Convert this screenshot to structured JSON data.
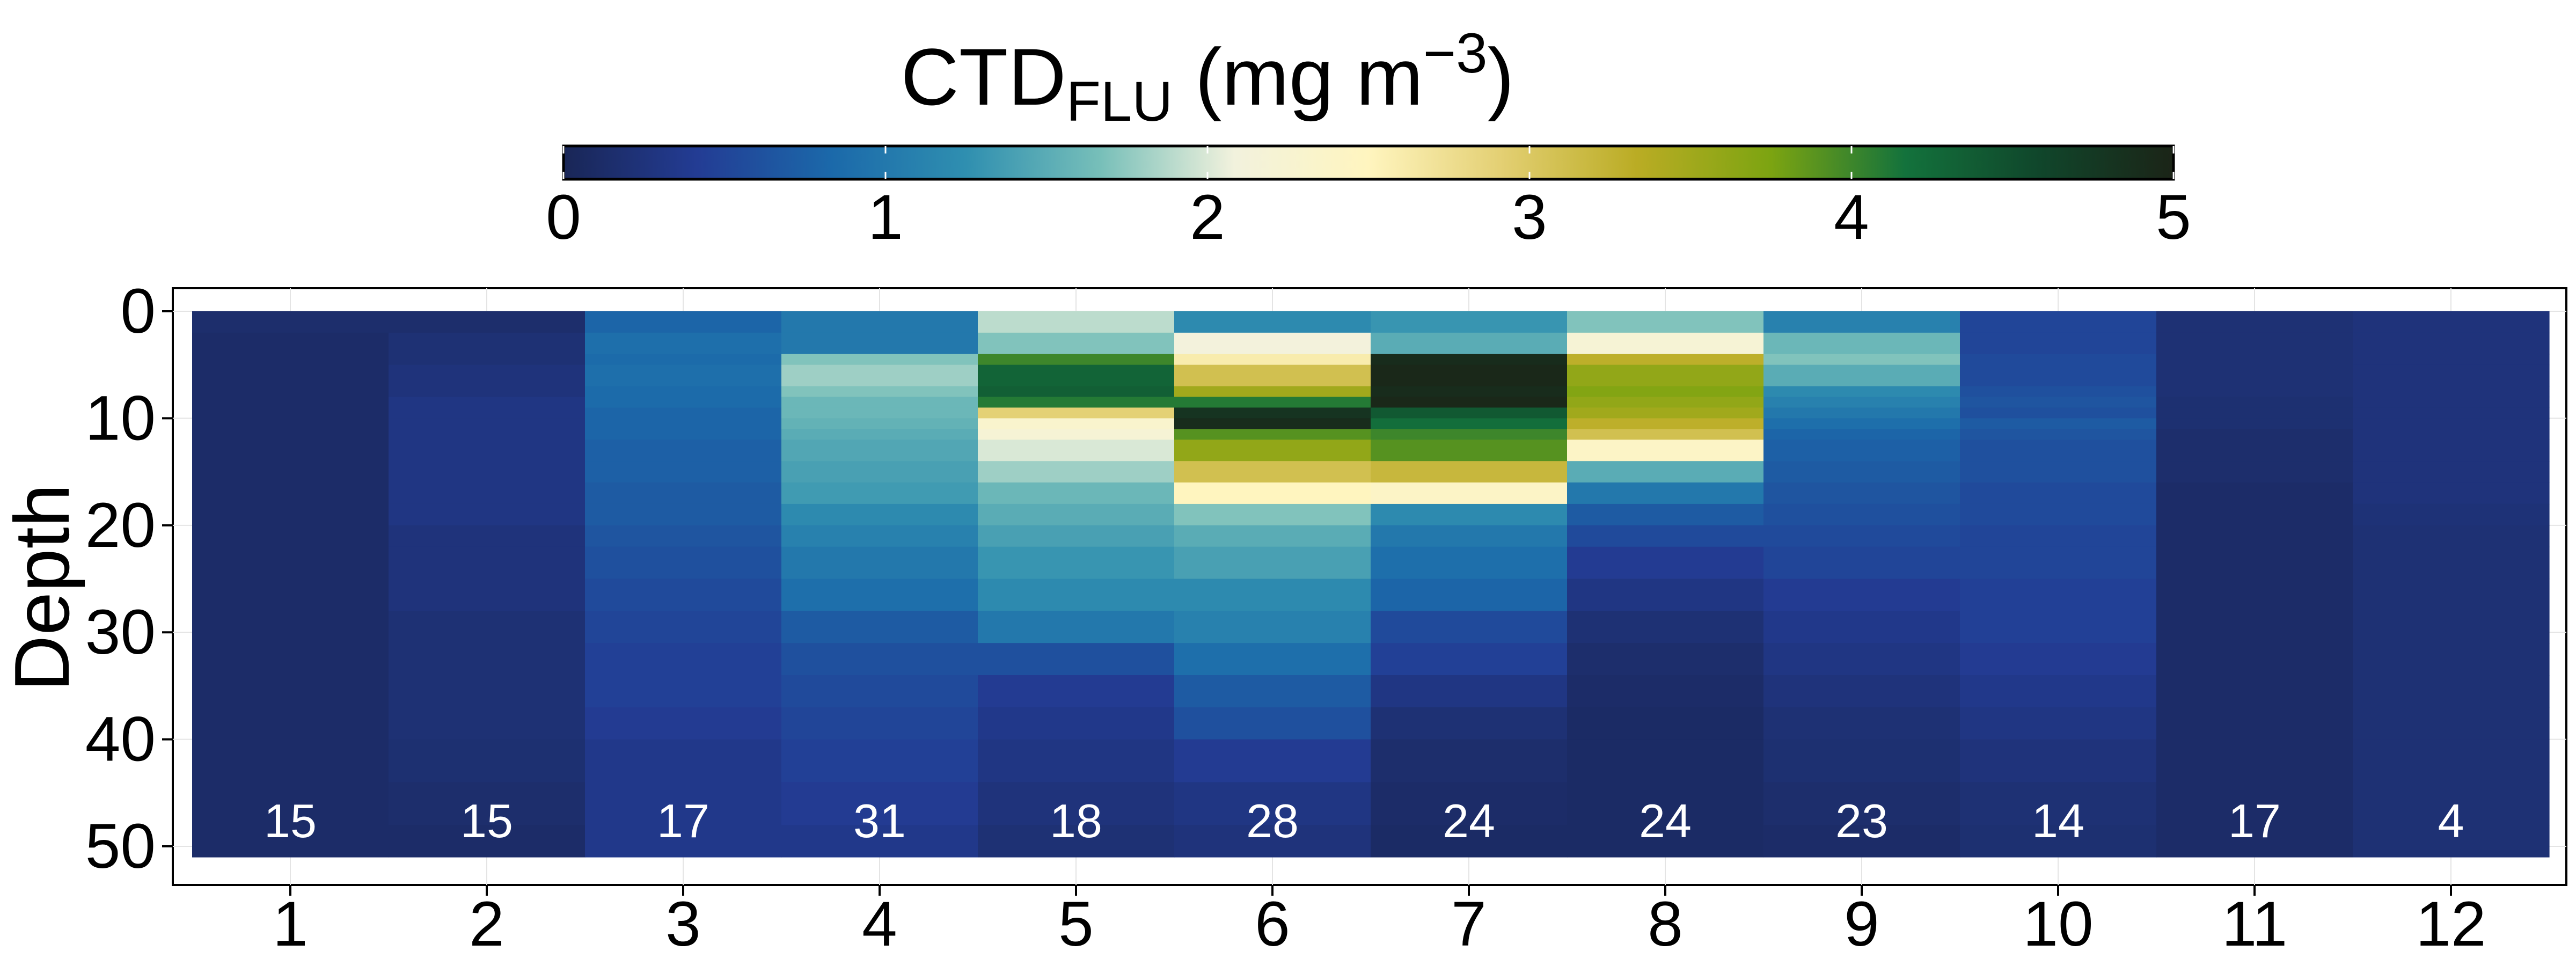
{
  "chart_data": {
    "type": "heatmap",
    "colorbar": {
      "title_main": "CTD",
      "title_sub": "FLU",
      "title_unit": " (mg m",
      "title_sup": "−3",
      "title_end": ")",
      "min": 0,
      "max": 5,
      "ticks": [
        "0",
        "1",
        "2",
        "3",
        "4",
        "5"
      ],
      "colors": [
        "#192656",
        "#233c94",
        "#1b69aa",
        "#2f8fb0",
        "#77bfb9",
        "#f2f2dd",
        "#fff5bf",
        "#e3cf72",
        "#baac24",
        "#7ca411",
        "#13723c",
        "#10462b",
        "#1b2417"
      ]
    },
    "ylabel": "Depth",
    "y_ticks": [
      0,
      10,
      20,
      30,
      40,
      50
    ],
    "ylim": [
      0,
      51
    ],
    "categories": [
      "1",
      "2",
      "3",
      "4",
      "5",
      "6",
      "7",
      "8",
      "9",
      "10",
      "11",
      "12"
    ],
    "counts": [
      "15",
      "15",
      "17",
      "31",
      "18",
      "28",
      "24",
      "24",
      "23",
      "14",
      "17",
      "4"
    ],
    "depth_edges": [
      0,
      2,
      4,
      5,
      7,
      8,
      9,
      10,
      11,
      12,
      14,
      16,
      18,
      20,
      22,
      25,
      28,
      31,
      34,
      37,
      40,
      44,
      48,
      51
    ],
    "values": [
      [
        0.15,
        0.12,
        0.12,
        0.12,
        0.12,
        0.12,
        0.12,
        0.12,
        0.12,
        0.12,
        0.12,
        0.12,
        0.12,
        0.12,
        0.12,
        0.12,
        0.12,
        0.12,
        0.12,
        0.12,
        0.12,
        0.12,
        0.12
      ],
      [
        0.15,
        0.2,
        0.2,
        0.25,
        0.25,
        0.3,
        0.3,
        0.3,
        0.3,
        0.3,
        0.3,
        0.3,
        0.3,
        0.25,
        0.25,
        0.25,
        0.2,
        0.2,
        0.2,
        0.2,
        0.18,
        0.15,
        0.12
      ],
      [
        0.8,
        0.9,
        0.85,
        0.9,
        0.85,
        0.85,
        0.8,
        0.8,
        0.8,
        0.75,
        0.75,
        0.7,
        0.7,
        0.65,
        0.6,
        0.55,
        0.5,
        0.45,
        0.45,
        0.4,
        0.35,
        0.35,
        0.35
      ],
      [
        1.0,
        1.0,
        1.7,
        1.8,
        1.7,
        1.6,
        1.6,
        1.55,
        1.5,
        1.45,
        1.4,
        1.35,
        1.2,
        1.1,
        1.0,
        0.9,
        0.7,
        0.6,
        0.55,
        0.5,
        0.45,
        0.4,
        0.35
      ],
      [
        1.9,
        1.7,
        4.0,
        4.3,
        4.35,
        4.1,
        2.9,
        2.3,
        2.2,
        2.0,
        1.8,
        1.6,
        1.5,
        1.4,
        1.3,
        1.2,
        1.0,
        0.6,
        0.4,
        0.35,
        0.3,
        0.25,
        0.2
      ],
      [
        1.2,
        2.1,
        2.6,
        3.1,
        3.5,
        4.1,
        4.8,
        4.9,
        3.9,
        3.6,
        3.1,
        2.5,
        1.7,
        1.5,
        1.4,
        1.2,
        1.1,
        0.9,
        0.7,
        0.6,
        0.4,
        0.3,
        0.25
      ],
      [
        1.3,
        1.5,
        4.9,
        4.95,
        4.9,
        4.95,
        4.4,
        4.2,
        4.0,
        3.9,
        3.2,
        2.4,
        1.2,
        1.0,
        0.9,
        0.8,
        0.55,
        0.45,
        0.3,
        0.2,
        0.15,
        0.12,
        0.1
      ],
      [
        1.7,
        2.2,
        3.3,
        3.6,
        3.7,
        3.6,
        3.5,
        3.3,
        3.1,
        2.4,
        1.5,
        1.0,
        0.7,
        0.55,
        0.4,
        0.3,
        0.2,
        0.15,
        0.12,
        0.1,
        0.1,
        0.1,
        0.1
      ],
      [
        1.1,
        1.6,
        1.7,
        1.5,
        1.2,
        1.1,
        1.0,
        0.9,
        0.8,
        0.75,
        0.7,
        0.65,
        0.6,
        0.55,
        0.5,
        0.4,
        0.35,
        0.3,
        0.25,
        0.2,
        0.18,
        0.15,
        0.12
      ],
      [
        0.5,
        0.5,
        0.55,
        0.55,
        0.6,
        0.65,
        0.6,
        0.7,
        0.65,
        0.6,
        0.6,
        0.55,
        0.55,
        0.5,
        0.5,
        0.45,
        0.45,
        0.4,
        0.35,
        0.3,
        0.25,
        0.2,
        0.18
      ],
      [
        0.2,
        0.2,
        0.2,
        0.2,
        0.2,
        0.18,
        0.18,
        0.18,
        0.15,
        0.15,
        0.15,
        0.12,
        0.12,
        0.12,
        0.12,
        0.12,
        0.12,
        0.12,
        0.12,
        0.12,
        0.12,
        0.12,
        0.12
      ],
      [
        0.25,
        0.25,
        0.25,
        0.25,
        0.25,
        0.25,
        0.25,
        0.25,
        0.25,
        0.25,
        0.25,
        0.25,
        0.22,
        0.2,
        0.2,
        0.2,
        0.2,
        0.2,
        0.2,
        0.2,
        0.2,
        0.2,
        0.2
      ]
    ]
  }
}
